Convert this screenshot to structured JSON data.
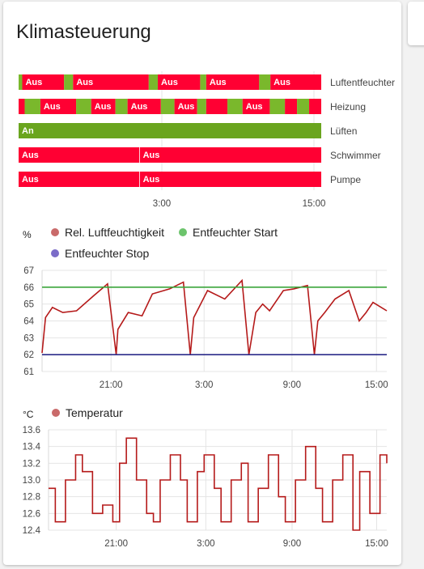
{
  "card": {
    "title": "Klimasteuerung"
  },
  "timeline": {
    "time_ticks": [
      "3:00",
      "15:00"
    ],
    "rows": [
      {
        "name": "Luftentfeuchter",
        "segments": [
          {
            "start": 0.0,
            "end": 0.012,
            "color": "#7ab82c",
            "label": ""
          },
          {
            "start": 0.012,
            "end": 0.15,
            "color": "#ff0033",
            "label": "Aus"
          },
          {
            "start": 0.15,
            "end": 0.18,
            "color": "#7ab82c",
            "label": ""
          },
          {
            "start": 0.18,
            "end": 0.43,
            "color": "#ff0033",
            "label": "Aus"
          },
          {
            "start": 0.43,
            "end": 0.46,
            "color": "#7ab82c",
            "label": ""
          },
          {
            "start": 0.46,
            "end": 0.6,
            "color": "#ff0033",
            "label": "Aus"
          },
          {
            "start": 0.6,
            "end": 0.62,
            "color": "#7ab82c",
            "label": ""
          },
          {
            "start": 0.62,
            "end": 0.795,
            "color": "#ff0033",
            "label": "Aus"
          },
          {
            "start": 0.795,
            "end": 0.832,
            "color": "#7ab82c",
            "label": ""
          },
          {
            "start": 0.832,
            "end": 1.0,
            "color": "#ff0033",
            "label": "Aus"
          }
        ]
      },
      {
        "name": "Heizung",
        "segments": [
          {
            "start": 0.0,
            "end": 0.02,
            "color": "#ff0033",
            "label": ""
          },
          {
            "start": 0.02,
            "end": 0.072,
            "color": "#7ab82c",
            "label": ""
          },
          {
            "start": 0.072,
            "end": 0.19,
            "color": "#ff0033",
            "label": "Aus"
          },
          {
            "start": 0.19,
            "end": 0.24,
            "color": "#7ab82c",
            "label": ""
          },
          {
            "start": 0.24,
            "end": 0.32,
            "color": "#ff0033",
            "label": "Aus"
          },
          {
            "start": 0.32,
            "end": 0.36,
            "color": "#7ab82c",
            "label": ""
          },
          {
            "start": 0.36,
            "end": 0.47,
            "color": "#ff0033",
            "label": "Aus"
          },
          {
            "start": 0.47,
            "end": 0.515,
            "color": "#7ab82c",
            "label": ""
          },
          {
            "start": 0.515,
            "end": 0.59,
            "color": "#ff0033",
            "label": "Aus"
          },
          {
            "start": 0.59,
            "end": 0.62,
            "color": "#7ab82c",
            "label": ""
          },
          {
            "start": 0.62,
            "end": 0.69,
            "color": "#ff0033",
            "label": ""
          },
          {
            "start": 0.69,
            "end": 0.74,
            "color": "#7ab82c",
            "label": ""
          },
          {
            "start": 0.74,
            "end": 0.83,
            "color": "#ff0033",
            "label": "Aus"
          },
          {
            "start": 0.83,
            "end": 0.88,
            "color": "#7ab82c",
            "label": ""
          },
          {
            "start": 0.88,
            "end": 0.92,
            "color": "#ff0033",
            "label": ""
          },
          {
            "start": 0.92,
            "end": 0.96,
            "color": "#7ab82c",
            "label": ""
          },
          {
            "start": 0.96,
            "end": 1.0,
            "color": "#ff0033",
            "label": ""
          }
        ]
      },
      {
        "name": "Lüften",
        "segments": [
          {
            "start": 0.0,
            "end": 1.0,
            "color": "#6aa51e",
            "label": "An"
          }
        ]
      },
      {
        "name": "Schwimmer",
        "segments": [
          {
            "start": 0.0,
            "end": 0.4,
            "color": "#ff0033",
            "label": "Aus"
          },
          {
            "start": 0.4,
            "end": 1.0,
            "color": "#ff0033",
            "label": "Aus"
          }
        ]
      },
      {
        "name": "Pumpe",
        "segments": [
          {
            "start": 0.0,
            "end": 0.4,
            "color": "#ff0033",
            "label": "Aus"
          },
          {
            "start": 0.4,
            "end": 1.0,
            "color": "#ff0033",
            "label": "Aus"
          }
        ]
      }
    ]
  },
  "humidity": {
    "unit": "%",
    "legend": [
      {
        "name": "Rel. Luftfeuchtigkeit",
        "color": "#c96a6a"
      },
      {
        "name": "Entfeuchter Start",
        "color": "#6cc46c"
      },
      {
        "name": "Entfeuchter Stop",
        "color": "#7b6cc8"
      }
    ],
    "x_ticks": [
      "21:00",
      "3:00",
      "9:00",
      "15:00"
    ],
    "y_ticks": [
      "67",
      "66",
      "65",
      "64",
      "63",
      "62",
      "61"
    ]
  },
  "temperature": {
    "unit": "°C",
    "legend": [
      {
        "name": "Temperatur",
        "color": "#c96a6a"
      }
    ],
    "x_ticks": [
      "21:00",
      "3:00",
      "9:00",
      "15:00"
    ],
    "y_ticks": [
      "13.6",
      "13.4",
      "13.2",
      "13.0",
      "12.8",
      "12.6",
      "12.4"
    ]
  },
  "chart_data": [
    {
      "type": "line",
      "ylabel": "%",
      "ylim": [
        61,
        67
      ],
      "x_ticks": [
        "21:00",
        "3:00",
        "9:00",
        "15:00"
      ],
      "series": [
        {
          "name": "Rel. Luftfeuchtigkeit",
          "color": "#b51a1a",
          "x": [
            0,
            0.01,
            0.03,
            0.06,
            0.1,
            0.15,
            0.19,
            0.215,
            0.22,
            0.25,
            0.29,
            0.32,
            0.37,
            0.41,
            0.43,
            0.44,
            0.48,
            0.53,
            0.58,
            0.6,
            0.62,
            0.64,
            0.66,
            0.7,
            0.73,
            0.77,
            0.79,
            0.8,
            0.82,
            0.85,
            0.89,
            0.92,
            0.94,
            0.96,
            1.0
          ],
          "y": [
            62.1,
            64.2,
            64.8,
            64.5,
            64.6,
            65.5,
            66.2,
            62.0,
            63.5,
            64.5,
            64.3,
            65.6,
            65.9,
            66.3,
            62.0,
            64.2,
            65.8,
            65.3,
            66.4,
            62.0,
            64.5,
            65.0,
            64.6,
            65.8,
            65.9,
            66.1,
            62.0,
            64.0,
            64.5,
            65.3,
            65.8,
            64.0,
            64.5,
            65.1,
            64.6
          ]
        },
        {
          "name": "Entfeuchter Start",
          "color": "#3aa53a",
          "x": [
            0,
            1
          ],
          "y": [
            66,
            66
          ]
        },
        {
          "name": "Entfeuchter Stop",
          "color": "#2a2a8a",
          "x": [
            0,
            1
          ],
          "y": [
            62,
            62
          ]
        }
      ]
    },
    {
      "type": "line",
      "ylabel": "°C",
      "ylim": [
        12.4,
        13.6
      ],
      "x_ticks": [
        "21:00",
        "3:00",
        "9:00",
        "15:00"
      ],
      "series": [
        {
          "name": "Temperatur",
          "color": "#b51a1a",
          "x": [
            0,
            0.02,
            0.05,
            0.08,
            0.1,
            0.13,
            0.16,
            0.19,
            0.21,
            0.23,
            0.26,
            0.29,
            0.31,
            0.33,
            0.36,
            0.39,
            0.41,
            0.44,
            0.46,
            0.49,
            0.51,
            0.54,
            0.57,
            0.59,
            0.62,
            0.65,
            0.68,
            0.7,
            0.73,
            0.76,
            0.79,
            0.81,
            0.84,
            0.87,
            0.9,
            0.92,
            0.95,
            0.98,
            1.0
          ],
          "y": [
            12.9,
            12.5,
            13.0,
            13.3,
            13.1,
            12.6,
            12.7,
            12.5,
            13.2,
            13.5,
            13.0,
            12.6,
            12.5,
            13.0,
            13.3,
            13.0,
            12.5,
            13.1,
            13.3,
            12.9,
            12.5,
            13.0,
            13.2,
            12.5,
            12.9,
            13.3,
            12.8,
            12.5,
            13.0,
            13.4,
            12.9,
            12.5,
            13.0,
            13.3,
            12.4,
            13.1,
            12.6,
            13.3,
            13.2
          ]
        }
      ]
    }
  ]
}
